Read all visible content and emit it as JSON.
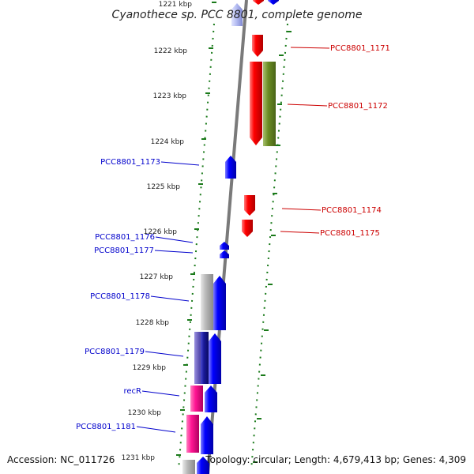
{
  "title": "Cyanothece sp. PCC 8801, complete genome",
  "footer": {
    "accession": "Accession: NC_011726",
    "topology": "Topology: circular; Length: 4,679,413 bp; Genes: 4,309"
  },
  "colors": {
    "forward_label": "#cc0000",
    "reverse_label": "#0000cc",
    "backbone": "#888888",
    "ruler": "#1a7a1a",
    "red": "#ff0000",
    "blue": "#0000ff",
    "olive": "#6b8e23",
    "gray": "#b8b8b8",
    "magenta": "#ff1493",
    "purple": "#5a4fb0",
    "navy": "#1a1a99",
    "lightblue": "#b0b8f0"
  },
  "ticks": [
    {
      "label": "1221 kbp"
    },
    {
      "label": "1222 kbp"
    },
    {
      "label": "1223 kbp"
    },
    {
      "label": "1224 kbp"
    },
    {
      "label": "1225 kbp"
    },
    {
      "label": "1226 kbp"
    },
    {
      "label": "1227 kbp"
    },
    {
      "label": "1228 kbp"
    },
    {
      "label": "1229 kbp"
    },
    {
      "label": "1230 kbp"
    },
    {
      "label": "1231 kbp"
    }
  ],
  "forward_labels": [
    {
      "text": "PCC8801_1171"
    },
    {
      "text": "PCC8801_1172"
    },
    {
      "text": "PCC8801_1174"
    },
    {
      "text": "PCC8801_1175"
    }
  ],
  "reverse_labels": [
    {
      "text": "PCC8801_1173"
    },
    {
      "text": "PCC8801_1176"
    },
    {
      "text": "PCC8801_1177"
    },
    {
      "text": "PCC8801_1178"
    },
    {
      "text": "PCC8801_1179"
    },
    {
      "text": "recR"
    },
    {
      "text": "PCC8801_1181"
    }
  ]
}
